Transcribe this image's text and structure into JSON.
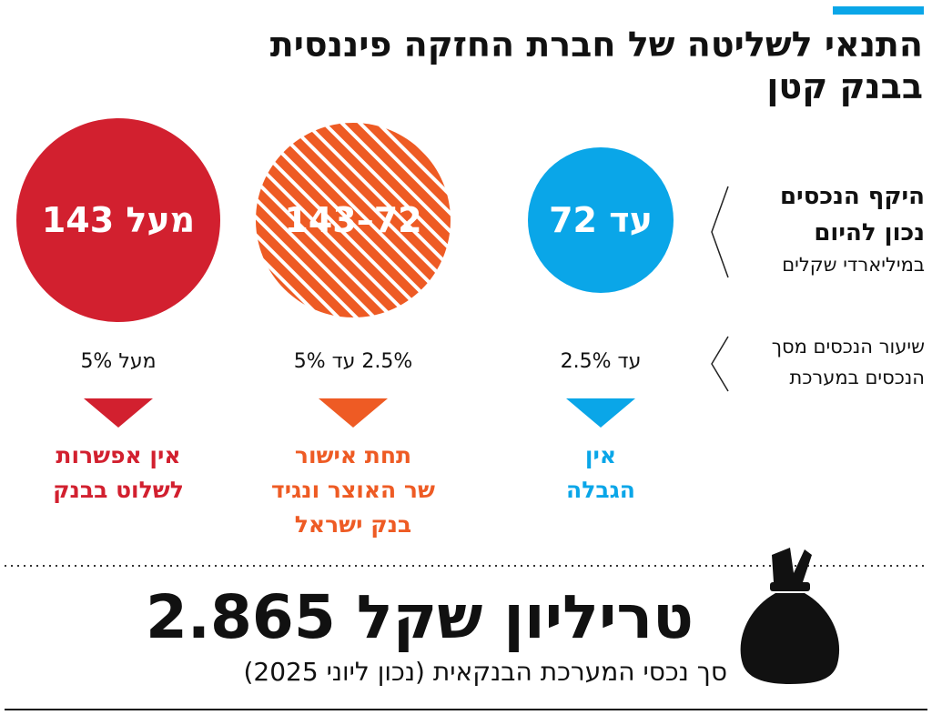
{
  "header": {
    "title_lines": [
      "התנאי לשליטה של חברת החזקה פיננסית",
      "בבנק קטן"
    ]
  },
  "row_labels": [
    {
      "lines": [
        "היקף הנכסים",
        "נכון להיום"
      ],
      "note": "במיליארדי שקלים"
    },
    {
      "lines": [
        "שיעור הנכסים מסך",
        "הנכסים במערכת"
      ]
    }
  ],
  "columns": [
    {
      "range": "עד 72",
      "share": "עד 2.5%",
      "outcome_lines": [
        "אין",
        "הגבלה"
      ],
      "color": "#0aa6e8"
    },
    {
      "range": "72–143",
      "share": "2.5% עד 5%",
      "outcome_lines": [
        "תחת אישור",
        "שר האוצר ונגיד",
        "בנק ישראל"
      ],
      "color": "#ee5b24",
      "hatched": true
    },
    {
      "range": "מעל 143",
      "share": "מעל 5%",
      "outcome_lines": [
        "אין אפשרות",
        "לשלוט בבנק"
      ],
      "color": "#d2202f"
    }
  ],
  "footer": {
    "total": "2.865 טריליון שקל",
    "caption": "סך נכסי המערכת הבנקאית (נכון ליוני 2025)"
  }
}
